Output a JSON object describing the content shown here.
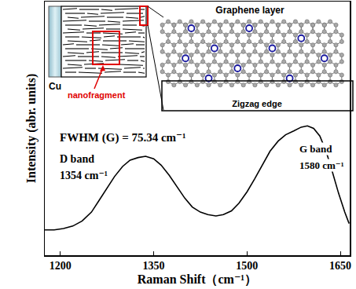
{
  "chart_data": {
    "type": "line",
    "x_label": "Raman Shift（cm⁻¹）",
    "y_label": "Intensity (abr. units)",
    "x": [
      1175,
      1190,
      1205,
      1220,
      1235,
      1250,
      1262,
      1275,
      1287,
      1300,
      1312,
      1325,
      1337,
      1350,
      1362,
      1375,
      1387,
      1400,
      1412,
      1425,
      1437,
      1450,
      1462,
      1475,
      1487,
      1500,
      1512,
      1525,
      1537,
      1550,
      1562,
      1575,
      1587,
      1597,
      1607,
      1617,
      1627,
      1637,
      1647,
      1657,
      1664
    ],
    "values": [
      0.1,
      0.1,
      0.105,
      0.115,
      0.135,
      0.17,
      0.215,
      0.265,
      0.31,
      0.35,
      0.375,
      0.385,
      0.39,
      0.38,
      0.355,
      0.315,
      0.27,
      0.225,
      0.19,
      0.17,
      0.16,
      0.155,
      0.16,
      0.175,
      0.205,
      0.25,
      0.3,
      0.355,
      0.41,
      0.45,
      0.475,
      0.49,
      0.505,
      0.51,
      0.5,
      0.47,
      0.41,
      0.33,
      0.245,
      0.17,
      0.125
    ],
    "color": "#000000",
    "xlim": [
      1175,
      1665
    ],
    "ylim": [
      0,
      1
    ],
    "xticks": [
      1200,
      1350,
      1500,
      1650
    ],
    "yticks": [],
    "tick_labels": "x",
    "grid": false,
    "annotations": [
      "FWHM (G) = 75.34 cm⁻¹",
      "D band",
      "1354 cm⁻¹",
      "G band",
      "1580 cm⁻¹"
    ]
  },
  "inset": {
    "substrate": "Cu",
    "fragment": "nanofragment",
    "layer": "Graphene layer",
    "edge": "Zigzag edge"
  }
}
